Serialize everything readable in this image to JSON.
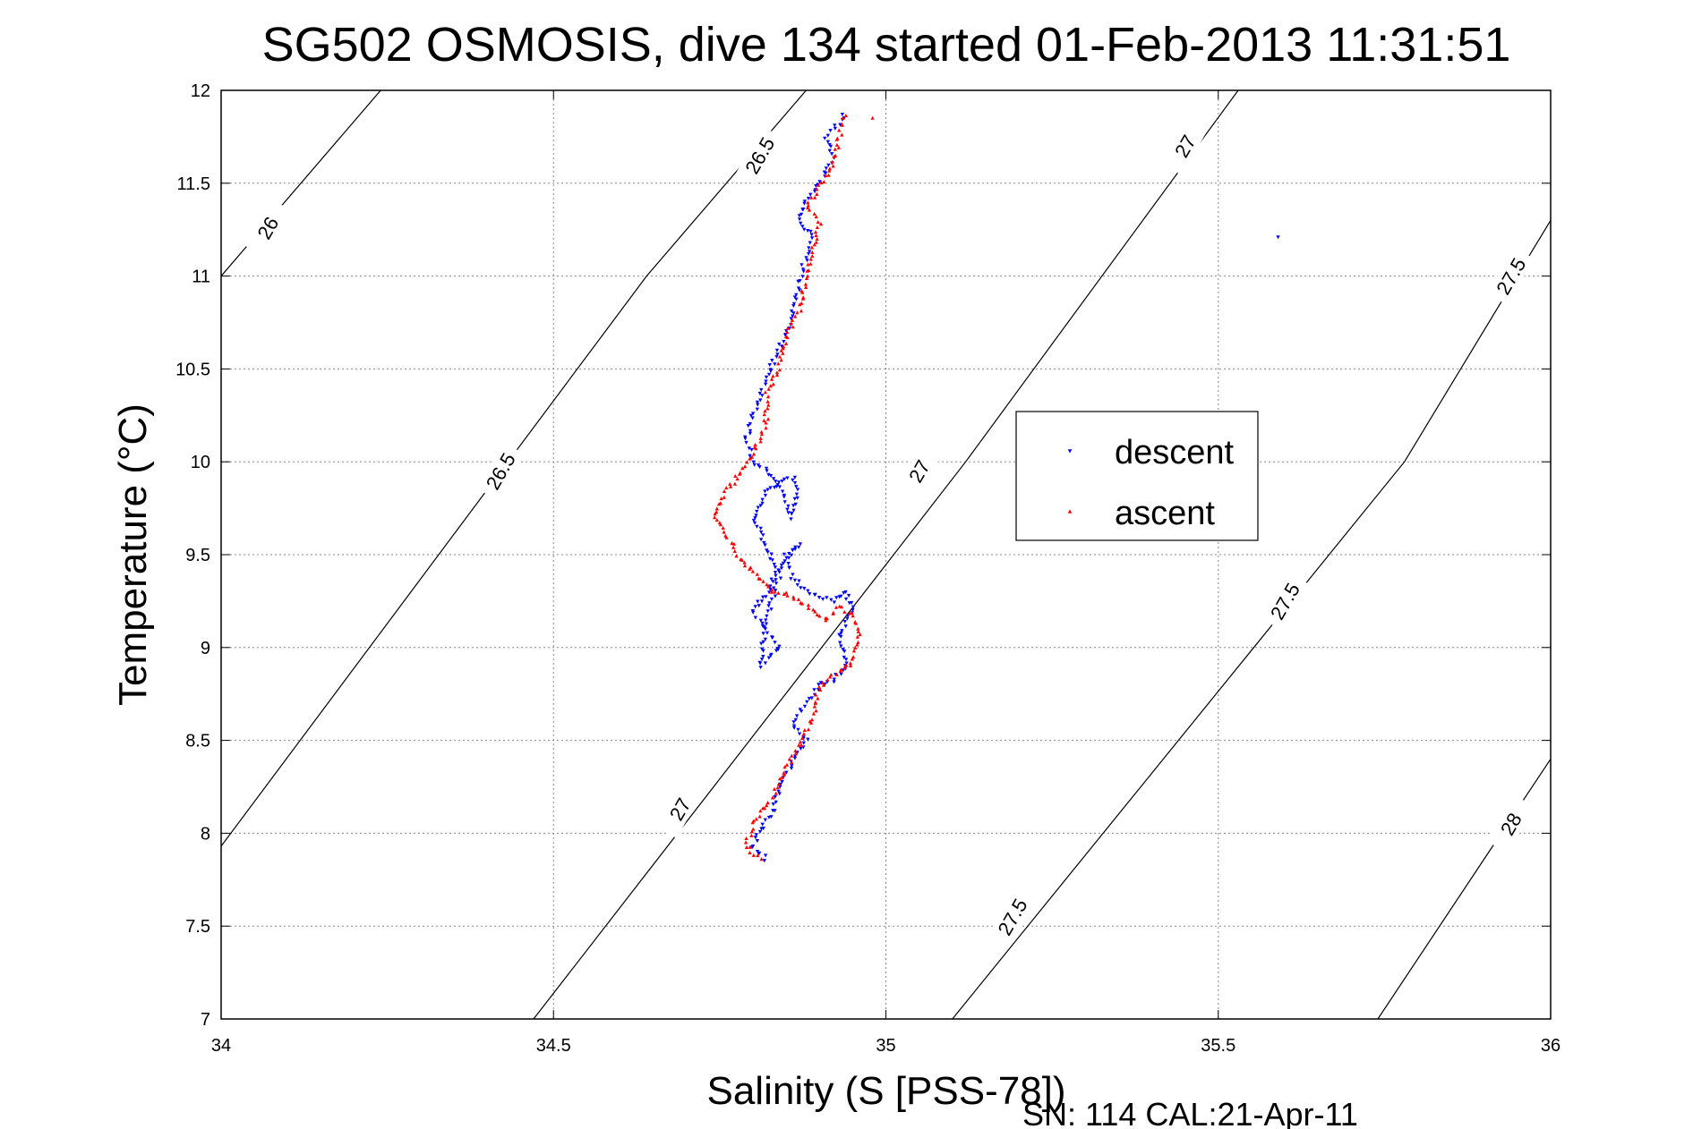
{
  "chart_data": {
    "type": "scatter",
    "title": "SG502 OSMOSIS, dive 134 started 01-Feb-2013 11:31:51",
    "xlabel": "Salinity (S [PSS-78])",
    "ylabel": "Temperature (°C)",
    "footer": "SN: 114  CAL:21-Apr-11",
    "xlim": [
      34,
      36
    ],
    "ylim": [
      7,
      12
    ],
    "x_ticks": [
      "34",
      "34.5",
      "35",
      "35.5",
      "36"
    ],
    "y_ticks": [
      "7",
      "7.5",
      "8",
      "8.5",
      "9",
      "9.5",
      "10",
      "10.5",
      "11",
      "11.5",
      "12"
    ],
    "grid": true,
    "legend_position": "center-right",
    "contours": [
      {
        "level": "26",
        "points": [
          [
            34.0,
            11.0
          ],
          [
            34.24,
            12.0
          ]
        ]
      },
      {
        "level": "26.5",
        "points": [
          [
            34.0,
            7.93
          ],
          [
            34.64,
            11.0
          ],
          [
            34.88,
            12.0
          ]
        ]
      },
      {
        "level": "27",
        "points": [
          [
            34.47,
            7.0
          ],
          [
            35.12,
            10.0
          ],
          [
            35.53,
            12.0
          ]
        ]
      },
      {
        "level": "27.5",
        "points": [
          [
            35.1,
            7.0
          ],
          [
            35.78,
            10.0
          ],
          [
            36.0,
            11.3
          ]
        ]
      },
      {
        "level": "28",
        "points": [
          [
            35.74,
            7.0
          ],
          [
            36.0,
            8.4
          ]
        ]
      }
    ],
    "contour_labels": [
      {
        "text": "26",
        "x": 34.07,
        "y": 11.26
      },
      {
        "text": "26.5",
        "x": 34.81,
        "y": 11.65
      },
      {
        "text": "26.5",
        "x": 34.42,
        "y": 9.95
      },
      {
        "text": "27",
        "x": 35.45,
        "y": 11.7
      },
      {
        "text": "27",
        "x": 35.05,
        "y": 9.95
      },
      {
        "text": "27",
        "x": 34.69,
        "y": 8.13
      },
      {
        "text": "27.5",
        "x": 35.94,
        "y": 11.0
      },
      {
        "text": "27.5",
        "x": 35.6,
        "y": 9.25
      },
      {
        "text": "27.5",
        "x": 35.19,
        "y": 7.55
      },
      {
        "text": "28",
        "x": 35.94,
        "y": 8.05
      }
    ],
    "series": [
      {
        "name": "descent",
        "color": "#0000ff",
        "marker": "triangle-down",
        "path": [
          [
            34.82,
            7.86
          ],
          [
            34.8,
            7.92
          ],
          [
            34.81,
            8.02
          ],
          [
            34.83,
            8.13
          ],
          [
            34.84,
            8.25
          ],
          [
            34.86,
            8.38
          ],
          [
            34.88,
            8.5
          ],
          [
            34.86,
            8.58
          ],
          [
            34.88,
            8.7
          ],
          [
            34.9,
            8.8
          ],
          [
            34.92,
            8.82
          ],
          [
            34.94,
            8.9
          ],
          [
            34.93,
            9.05
          ],
          [
            34.95,
            9.2
          ],
          [
            34.94,
            9.3
          ],
          [
            34.92,
            9.25
          ],
          [
            34.88,
            9.3
          ],
          [
            34.86,
            9.38
          ],
          [
            34.85,
            9.5
          ],
          [
            34.87,
            9.55
          ],
          [
            34.84,
            9.43
          ],
          [
            34.82,
            9.28
          ],
          [
            34.8,
            9.2
          ],
          [
            34.82,
            9.1
          ],
          [
            34.84,
            9.0
          ],
          [
            34.81,
            8.9
          ],
          [
            34.82,
            9.15
          ],
          [
            34.84,
            9.4
          ],
          [
            34.82,
            9.55
          ],
          [
            34.8,
            9.7
          ],
          [
            34.82,
            9.85
          ],
          [
            34.86,
            9.92
          ],
          [
            34.87,
            9.85
          ],
          [
            34.86,
            9.7
          ],
          [
            34.83,
            9.93
          ],
          [
            34.8,
            10.0
          ],
          [
            34.79,
            10.12
          ],
          [
            34.8,
            10.25
          ],
          [
            34.82,
            10.45
          ],
          [
            34.84,
            10.62
          ],
          [
            34.86,
            10.8
          ],
          [
            34.87,
            10.98
          ],
          [
            34.88,
            11.1
          ],
          [
            34.89,
            11.22
          ],
          [
            34.87,
            11.3
          ],
          [
            34.88,
            11.4
          ],
          [
            34.9,
            11.5
          ],
          [
            34.92,
            11.63
          ],
          [
            34.91,
            11.75
          ],
          [
            34.93,
            11.82
          ],
          [
            34.94,
            11.88
          ]
        ],
        "outliers": [
          [
            35.59,
            11.21
          ]
        ]
      },
      {
        "name": "ascent",
        "color": "#ff0000",
        "marker": "triangle-up",
        "path": [
          [
            34.81,
            7.86
          ],
          [
            34.79,
            7.93
          ],
          [
            34.8,
            8.05
          ],
          [
            34.83,
            8.2
          ],
          [
            34.85,
            8.35
          ],
          [
            34.87,
            8.48
          ],
          [
            34.89,
            8.62
          ],
          [
            34.9,
            8.78
          ],
          [
            34.92,
            8.85
          ],
          [
            34.95,
            8.92
          ],
          [
            34.96,
            9.05
          ],
          [
            34.95,
            9.18
          ],
          [
            34.93,
            9.22
          ],
          [
            34.91,
            9.15
          ],
          [
            34.89,
            9.2
          ],
          [
            34.86,
            9.28
          ],
          [
            34.83,
            9.3
          ],
          [
            34.8,
            9.4
          ],
          [
            34.78,
            9.48
          ],
          [
            34.76,
            9.6
          ],
          [
            34.74,
            9.72
          ],
          [
            34.76,
            9.85
          ],
          [
            34.78,
            9.93
          ],
          [
            34.8,
            10.05
          ],
          [
            34.82,
            10.2
          ],
          [
            34.82,
            10.35
          ],
          [
            34.84,
            10.52
          ],
          [
            34.85,
            10.68
          ],
          [
            34.87,
            10.82
          ],
          [
            34.88,
            10.98
          ],
          [
            34.89,
            11.15
          ],
          [
            34.9,
            11.28
          ],
          [
            34.88,
            11.38
          ],
          [
            34.9,
            11.48
          ],
          [
            34.92,
            11.6
          ],
          [
            34.93,
            11.75
          ],
          [
            34.94,
            11.88
          ]
        ],
        "outliers": [
          [
            34.98,
            11.85
          ]
        ]
      }
    ]
  }
}
